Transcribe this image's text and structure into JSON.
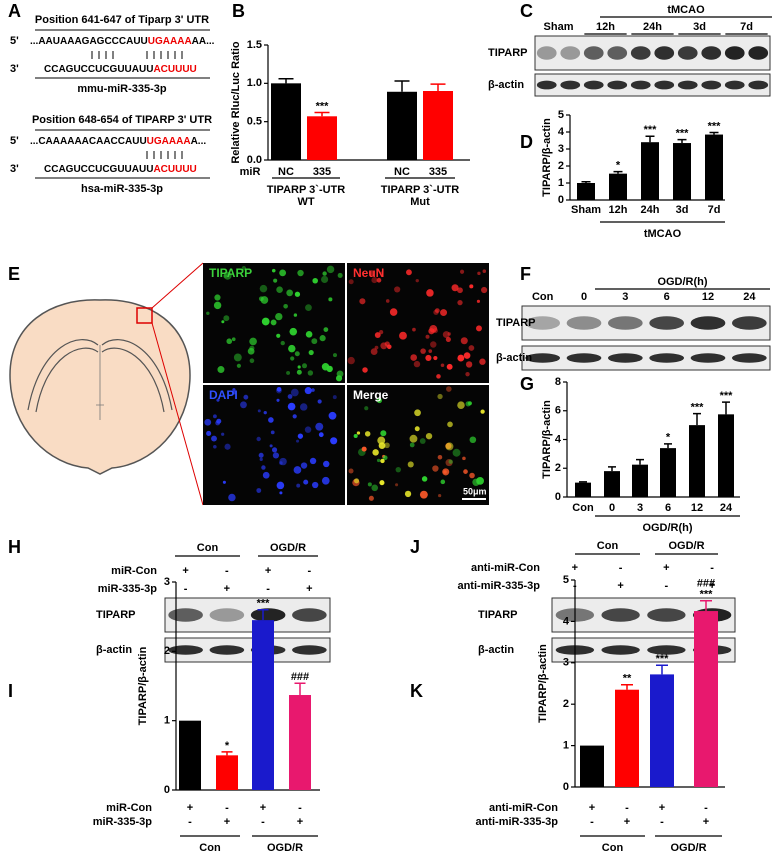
{
  "panel_labels": [
    "A",
    "B",
    "C",
    "D",
    "E",
    "F",
    "G",
    "H",
    "I",
    "J",
    "K"
  ],
  "panel_a": {
    "sites": [
      {
        "title": "Position 641-647 of Tiparp 3' UTR",
        "five": "5'",
        "target": "...AAUAAAGAGCCCAUU",
        "seed": "UGAAAA",
        "tail": "AA...",
        "three": "3'",
        "mirna": "CCAGUCCUCGUUAUU",
        "mirna_seed": "ACUUUU",
        "name": "mmu-miR-335-3p"
      },
      {
        "title": "Position 648-654 of TIPARP 3' UTR",
        "five": "5'",
        "target": "...CAAAAAACAACCAUU",
        "seed": "UGAAAA",
        "tail": "A...",
        "three": "3'",
        "mirna": "CCAGUCCUCGUUAUU",
        "mirna_seed": "ACUUUU",
        "name": "hsa-miR-335-3p"
      }
    ]
  },
  "panel_e": {
    "channels": [
      "TIPARP",
      "NeuN",
      "DAPI",
      "Merge"
    ],
    "scale_bar": "50μm"
  },
  "blots": {
    "C": {
      "group": "tMCAO",
      "lanes": [
        "Sham",
        "12h",
        "24h",
        "3d",
        "7d"
      ],
      "rows": [
        "TIPARP",
        "β-actin"
      ]
    },
    "F": {
      "group": "OGD/R(h)",
      "lanes": [
        "Con",
        "0",
        "3",
        "6",
        "12",
        "24"
      ],
      "rows": [
        "TIPARP",
        "β-actin"
      ]
    },
    "H": {
      "groups": [
        "Con",
        "OGD/R"
      ],
      "conditions": [
        {
          "name": "miR-Con",
          "signs": [
            "+",
            "-",
            "+",
            "-"
          ]
        },
        {
          "name": "miR-335-3p",
          "signs": [
            "-",
            "+",
            "-",
            "+"
          ]
        }
      ],
      "rows": [
        "TIPARP",
        "β-actin"
      ]
    },
    "J": {
      "groups": [
        "Con",
        "OGD/R"
      ],
      "conditions": [
        {
          "name": "anti-miR-Con",
          "signs": [
            "+",
            "-",
            "+",
            "-"
          ]
        },
        {
          "name": "anti-miR-335-3p",
          "signs": [
            "-",
            "+",
            "-",
            "+"
          ]
        }
      ],
      "rows": [
        "TIPARP",
        "β-actin"
      ]
    }
  },
  "chart_data": [
    {
      "type": "bar",
      "ylabel": "Relative Rluc/Luc Ratio",
      "categories": [
        "NC",
        "335",
        "NC",
        "335"
      ],
      "values": [
        1.0,
        0.57,
        0.89,
        0.9
      ],
      "errors": [
        0.06,
        0.05,
        0.14,
        0.09
      ],
      "colors": [
        "#000000",
        "#ff0000",
        "#000000",
        "#ff0000"
      ],
      "ylim": [
        0,
        1.5
      ],
      "yticks": [
        {
          "value": 0,
          "label": "0.0"
        },
        {
          "value": 0.5,
          "label": "0.5"
        },
        {
          "value": 1,
          "label": "1.0"
        },
        {
          "value": 1.5,
          "label": "1.5"
        }
      ],
      "annotations": [
        {
          "index": 1,
          "text": "***"
        }
      ],
      "x_row_label": "miR",
      "groups": [
        "TIPARP 3`-UTR",
        "TIPARP 3`-UTR"
      ],
      "group_sub": [
        "WT",
        "Mut"
      ]
    },
    {
      "type": "bar",
      "ylabel": "TIPARP/β-actin",
      "categories": [
        "Sham",
        "12h",
        "24h",
        "3d",
        "7d"
      ],
      "values": [
        1.0,
        1.55,
        3.4,
        3.35,
        3.85
      ],
      "errors": [
        0.07,
        0.12,
        0.35,
        0.2,
        0.12
      ],
      "colors": [
        "#000000",
        "#000000",
        "#000000",
        "#000000",
        "#000000"
      ],
      "ylim": [
        0,
        5
      ],
      "yticks": [
        0,
        1,
        2,
        3,
        4,
        5
      ],
      "annotations": [
        {
          "index": 1,
          "text": "*"
        },
        {
          "index": 2,
          "text": "***"
        },
        {
          "index": 3,
          "text": "***"
        },
        {
          "index": 4,
          "text": "***"
        }
      ],
      "groups": [
        "tMCAO"
      ]
    },
    {
      "type": "bar",
      "ylabel": "TIPARP/β-actin",
      "categories": [
        "Con",
        "0",
        "3",
        "6",
        "12",
        "24"
      ],
      "values": [
        1.0,
        1.8,
        2.25,
        3.4,
        5.0,
        5.75
      ],
      "errors": [
        0.05,
        0.3,
        0.35,
        0.3,
        0.8,
        0.85
      ],
      "colors": [
        "#000000",
        "#000000",
        "#000000",
        "#000000",
        "#000000",
        "#000000"
      ],
      "ylim": [
        0,
        8
      ],
      "yticks": [
        0,
        2,
        4,
        6,
        8
      ],
      "annotations": [
        {
          "index": 3,
          "text": "*"
        },
        {
          "index": 4,
          "text": "***"
        },
        {
          "index": 5,
          "text": "***"
        }
      ],
      "groups": [
        "OGD/R(h)"
      ]
    },
    {
      "type": "bar",
      "ylabel": "TIPARP/β-actin",
      "values": [
        1.0,
        0.5,
        2.45,
        1.37
      ],
      "errors": [
        null,
        0.05,
        0.15,
        0.17
      ],
      "colors": [
        "#000000",
        "#ff0000",
        "#1a1acc",
        "#e8186e"
      ],
      "ylim": [
        0,
        3
      ],
      "yticks": [
        0,
        1,
        2,
        3
      ],
      "annotations": [
        {
          "index": 1,
          "text": "*"
        },
        {
          "index": 2,
          "text": "***"
        },
        {
          "index": 3,
          "text": "###"
        }
      ],
      "conditions": [
        {
          "name": "miR-Con",
          "signs": [
            "+",
            "-",
            "+",
            "-"
          ]
        },
        {
          "name": "miR-335-3p",
          "signs": [
            "-",
            "+",
            "-",
            "+"
          ]
        }
      ],
      "groups": [
        "Con",
        "OGD/R"
      ]
    },
    {
      "type": "bar",
      "ylabel": "TIPARP/β-actin",
      "values": [
        1.0,
        2.35,
        2.72,
        4.25
      ],
      "errors": [
        null,
        0.12,
        0.22,
        0.25
      ],
      "colors": [
        "#000000",
        "#ff0000",
        "#1a1acc",
        "#e8186e"
      ],
      "ylim": [
        0,
        5
      ],
      "yticks": [
        0,
        1,
        2,
        3,
        4,
        5
      ],
      "annotations": [
        {
          "index": 1,
          "text": "**"
        },
        {
          "index": 2,
          "text": "***"
        },
        {
          "index": 3,
          "text": "***"
        },
        {
          "index": 3,
          "text": "###"
        }
      ],
      "conditions": [
        {
          "name": "anti-miR-Con",
          "signs": [
            "+",
            "-",
            "+",
            "-"
          ]
        },
        {
          "name": "anti-miR-335-3p",
          "signs": [
            "-",
            "+",
            "-",
            "+"
          ]
        }
      ],
      "groups": [
        "Con",
        "OGD/R"
      ]
    }
  ]
}
